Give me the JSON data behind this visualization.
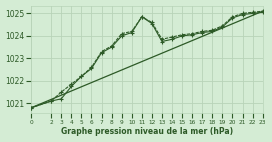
{
  "background_color": "#d4ecd4",
  "grid_color": "#b8d4b8",
  "line_color": "#2d5a27",
  "title": "Graphe pression niveau de la mer (hPa)",
  "xlim": [
    0,
    23
  ],
  "ylim": [
    1020.55,
    1025.35
  ],
  "yticks": [
    1021,
    1022,
    1023,
    1024,
    1025
  ],
  "xticks": [
    0,
    2,
    3,
    4,
    5,
    6,
    7,
    8,
    9,
    10,
    11,
    12,
    13,
    14,
    15,
    16,
    17,
    18,
    19,
    20,
    21,
    22,
    23
  ],
  "line1_x": [
    0,
    2,
    3,
    4,
    5,
    6,
    7,
    8,
    9,
    10,
    11,
    12,
    13,
    14,
    15,
    16,
    17,
    18,
    19,
    20,
    21,
    22,
    23
  ],
  "line1_y": [
    1020.8,
    1021.1,
    1021.5,
    1021.85,
    1022.2,
    1022.6,
    1023.3,
    1023.55,
    1024.1,
    1024.2,
    1024.85,
    1024.6,
    1023.85,
    1023.95,
    1024.05,
    1024.1,
    1024.2,
    1024.25,
    1024.45,
    1024.85,
    1025.0,
    1025.05,
    1025.1
  ],
  "line2_x": [
    0,
    2,
    3,
    4,
    5,
    6,
    7,
    8,
    9,
    10,
    11,
    12,
    13,
    14,
    15,
    16,
    17,
    18,
    19,
    20,
    21,
    22,
    23
  ],
  "line2_y": [
    1020.8,
    1021.1,
    1021.2,
    1021.75,
    1022.2,
    1022.55,
    1023.25,
    1023.5,
    1024.0,
    1024.15,
    1024.85,
    1024.55,
    1023.75,
    1023.85,
    1024.0,
    1024.05,
    1024.15,
    1024.2,
    1024.4,
    1024.8,
    1024.95,
    1025.0,
    1025.05
  ],
  "line3_x": [
    0,
    23
  ],
  "line3_y": [
    1020.8,
    1025.1
  ]
}
